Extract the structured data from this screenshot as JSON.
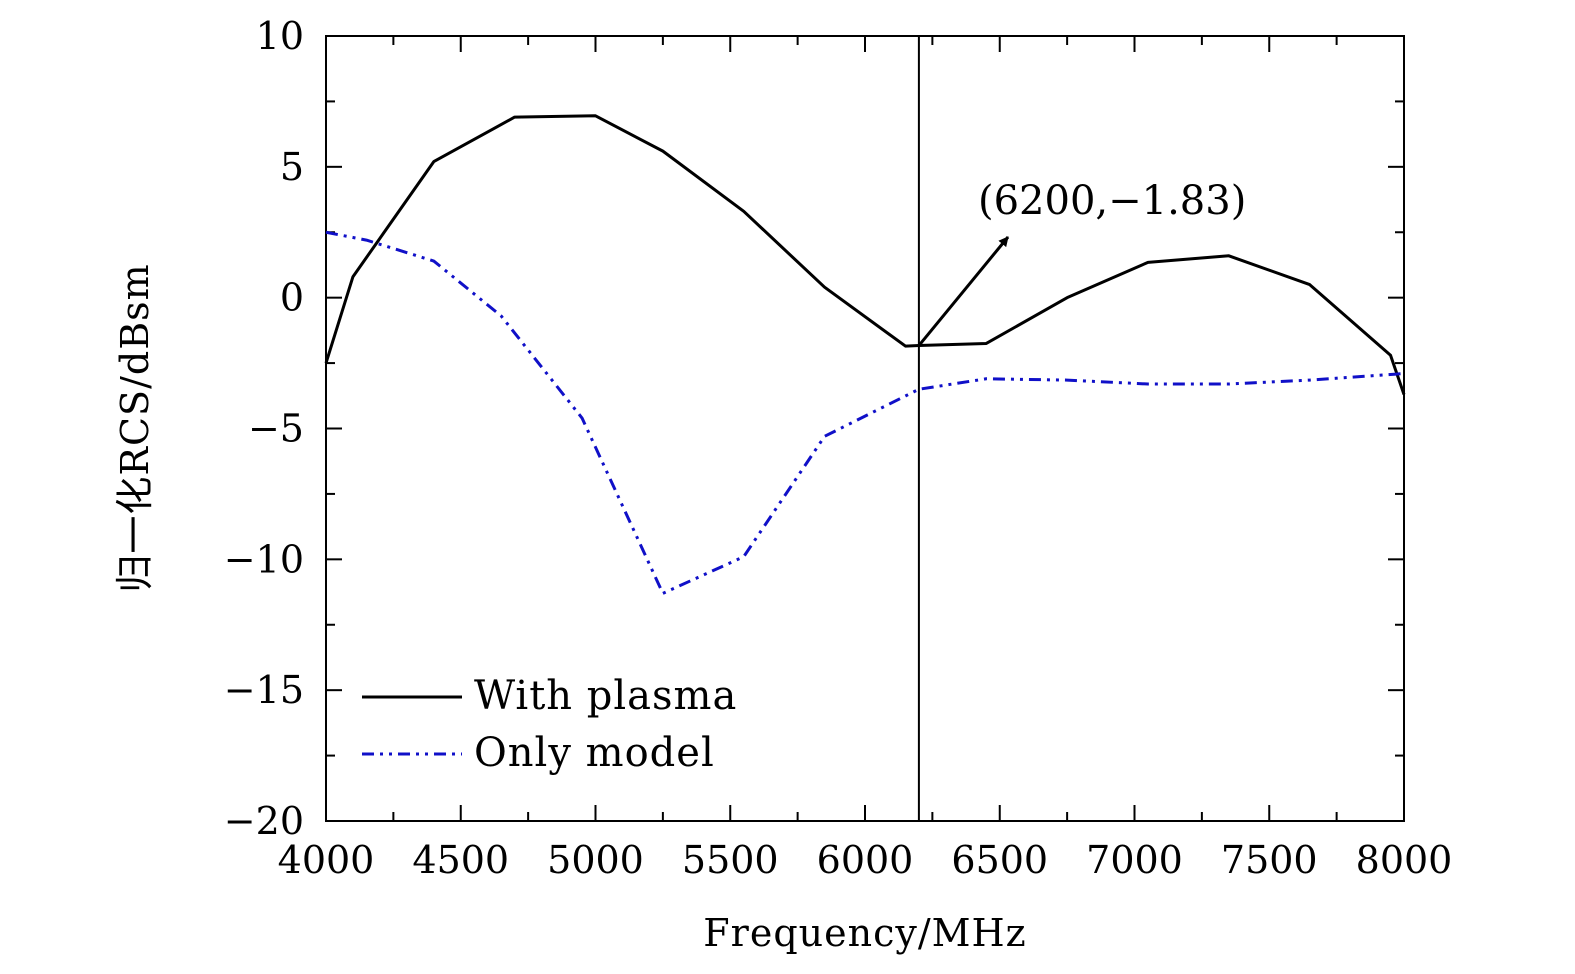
{
  "chart_data": {
    "type": "line",
    "title": "",
    "xlabel": "Frequency/MHz",
    "ylabel": "归一化RCS/dBsm",
    "xlim": [
      4000,
      8000
    ],
    "ylim": [
      -20,
      10
    ],
    "xticks": [
      4000,
      4500,
      5000,
      5500,
      6000,
      6500,
      7000,
      7500,
      8000
    ],
    "yticks": [
      10,
      5,
      0,
      -5,
      -10,
      -15,
      -20
    ],
    "xtick_labels": [
      "4000",
      "4500",
      "5000",
      "5500",
      "6000",
      "6500",
      "7000",
      "7500",
      "8000"
    ],
    "ytick_labels": [
      "10",
      "5",
      "0",
      "−5",
      "−10",
      "−15",
      "−20"
    ],
    "grid": false,
    "legend_position": "bottom-left",
    "series": [
      {
        "name": "With plasma",
        "color": "#000000",
        "style": "solid",
        "x": [
          4000,
          4100,
          4400,
          4700,
          5000,
          5250,
          5550,
          5850,
          6150,
          6200,
          6450,
          6750,
          7050,
          7350,
          7650,
          7950,
          8000
        ],
        "y": [
          -2.5,
          0.8,
          5.2,
          6.9,
          6.95,
          5.6,
          3.3,
          0.4,
          -1.85,
          -1.83,
          -1.75,
          0.0,
          1.35,
          1.6,
          0.5,
          -2.2,
          -3.7
        ]
      },
      {
        "name": "Only model",
        "color": "#1010c8",
        "style": "dash-dot-dot",
        "x": [
          4000,
          4150,
          4400,
          4650,
          4950,
          5250,
          5550,
          5850,
          6200,
          6450,
          6750,
          7050,
          7350,
          7650,
          8000
        ],
        "y": [
          2.5,
          2.2,
          1.4,
          -0.7,
          -4.6,
          -11.3,
          -9.9,
          -5.3,
          -3.5,
          -3.1,
          -3.15,
          -3.3,
          -3.3,
          -3.15,
          -2.9
        ]
      }
    ],
    "vertical_line_x": 6200,
    "annotation": {
      "text": "(6200,−1.83)",
      "x": 6200,
      "y": -1.83
    }
  }
}
